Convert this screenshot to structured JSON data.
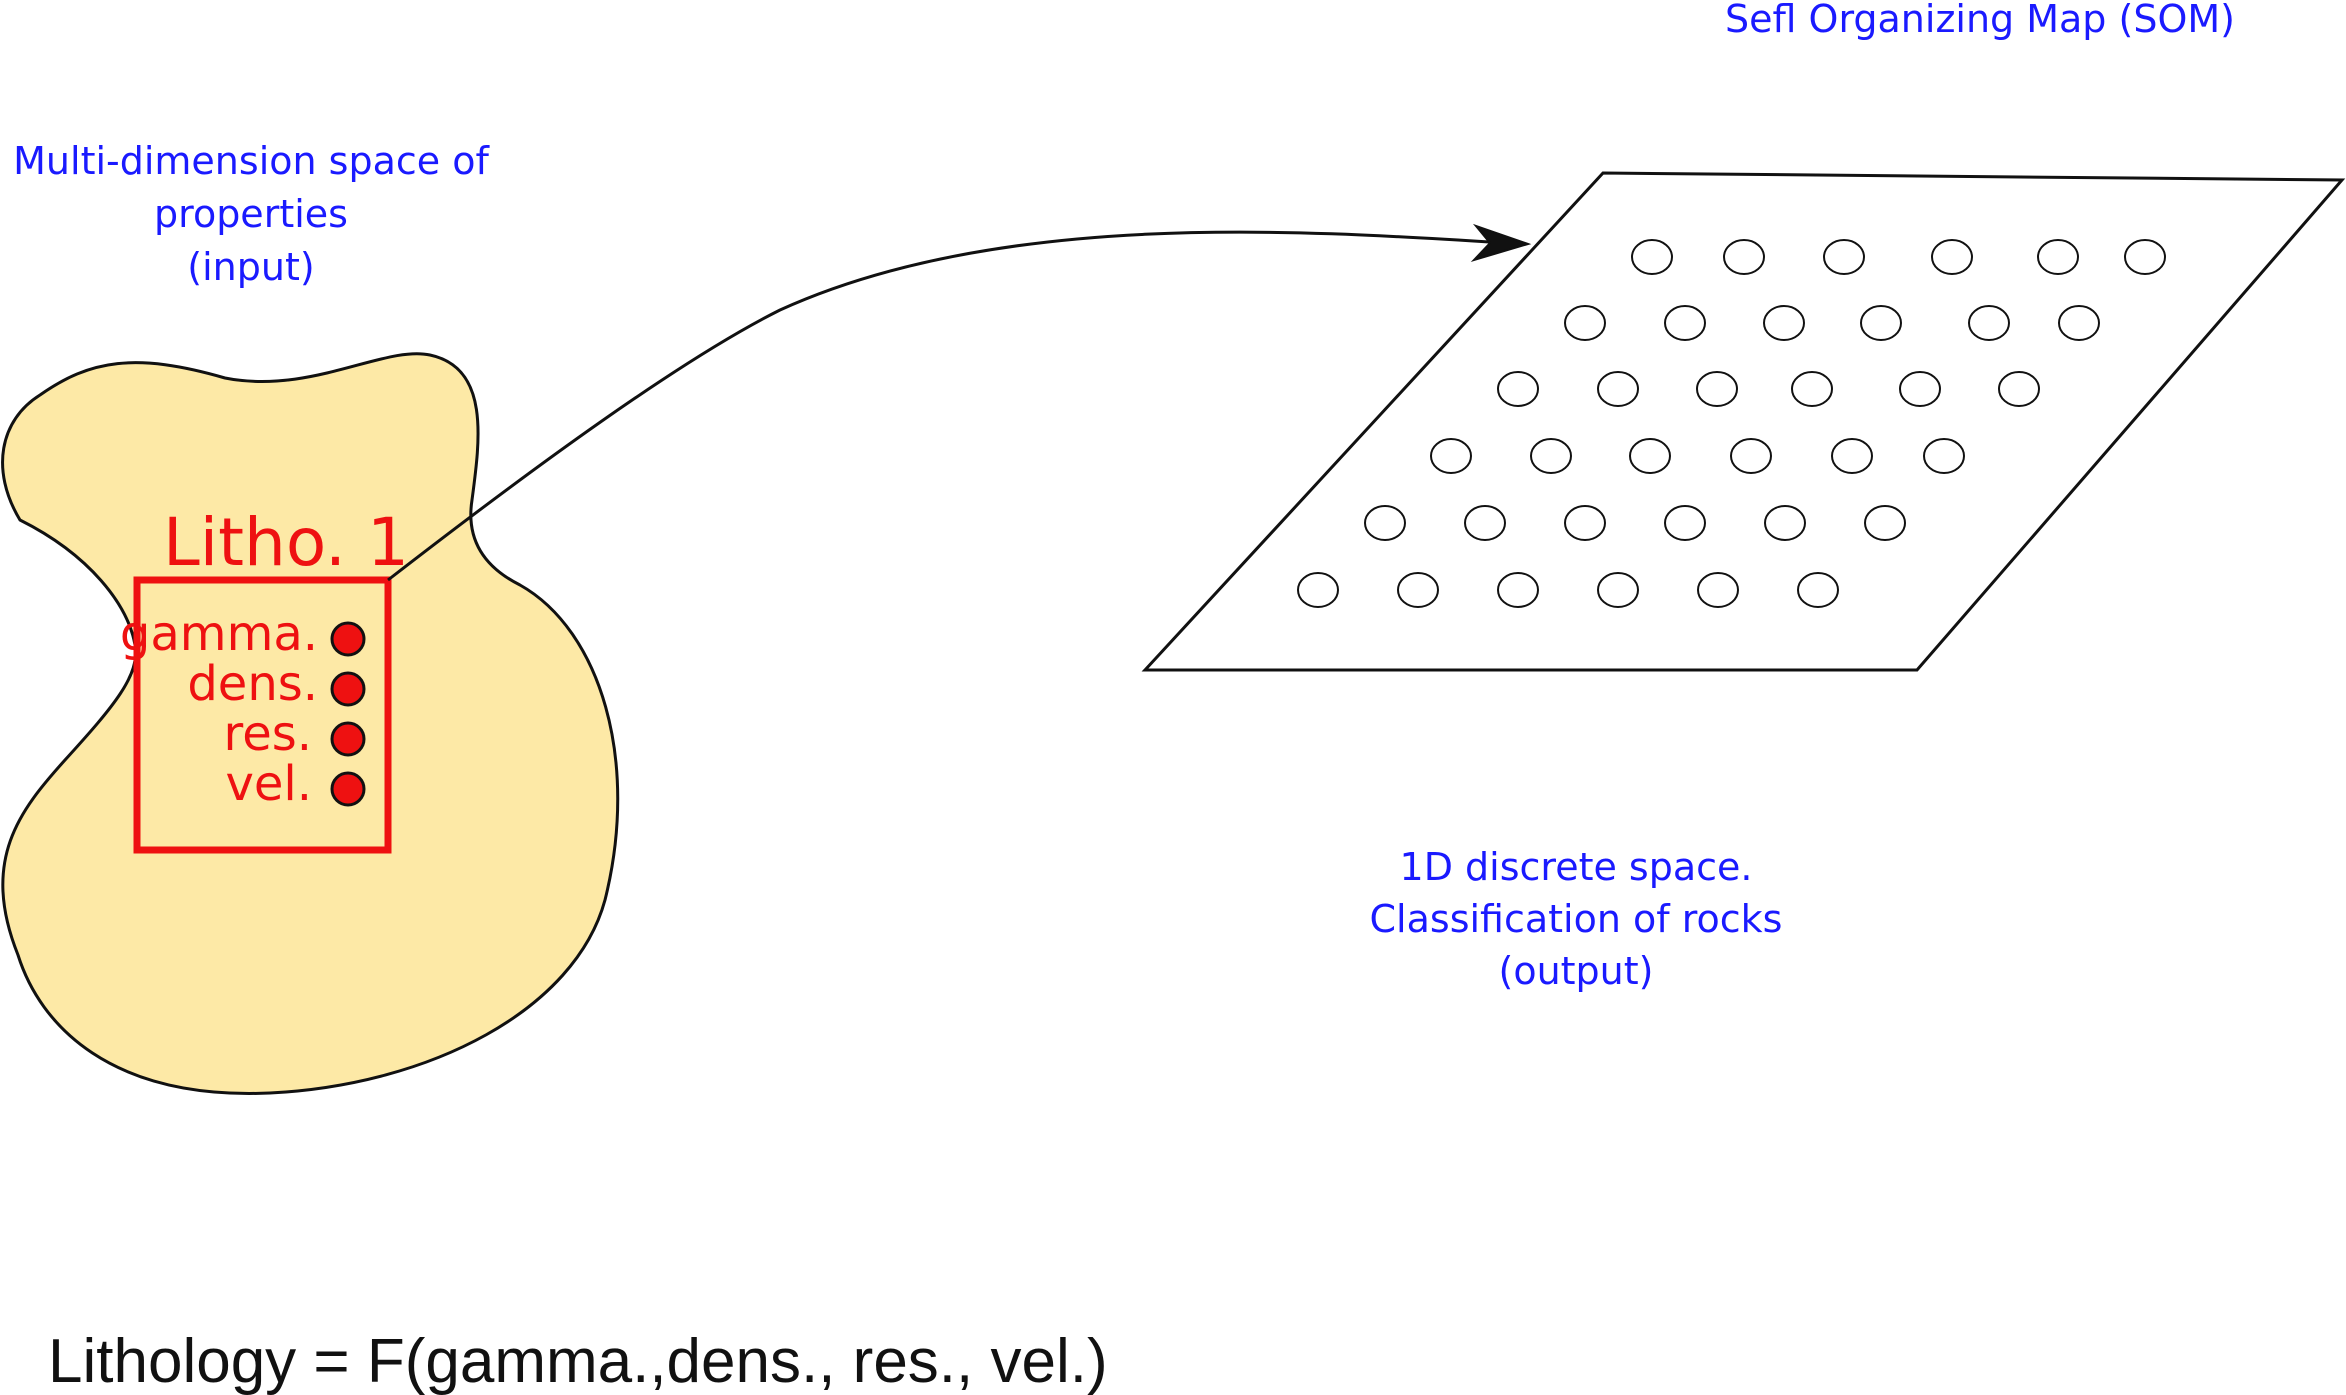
{
  "som_title": "Sefl Organizing Map (SOM)",
  "input_label": {
    "line1": "Multi-dimension space of",
    "line2": "properties",
    "line3": "(input)"
  },
  "output_label": {
    "line1": "1D discrete space.",
    "line2": "Classification of rocks",
    "line3": "(output)"
  },
  "litho": {
    "title": "Litho. 1",
    "properties": [
      "gamma.",
      "dens.",
      "res.",
      "vel."
    ]
  },
  "formula": "Lithology = F(gamma.,dens., res., vel.)",
  "som_grid": {
    "rows": 6,
    "nodes_per_row": [
      6,
      6,
      6,
      6,
      6,
      6
    ]
  },
  "colors": {
    "label_blue": "#1a1aff",
    "litho_red": "#ee1111",
    "blob_fill": "#fde9a6",
    "node_red": "#ee1111",
    "stroke": "#111111"
  }
}
